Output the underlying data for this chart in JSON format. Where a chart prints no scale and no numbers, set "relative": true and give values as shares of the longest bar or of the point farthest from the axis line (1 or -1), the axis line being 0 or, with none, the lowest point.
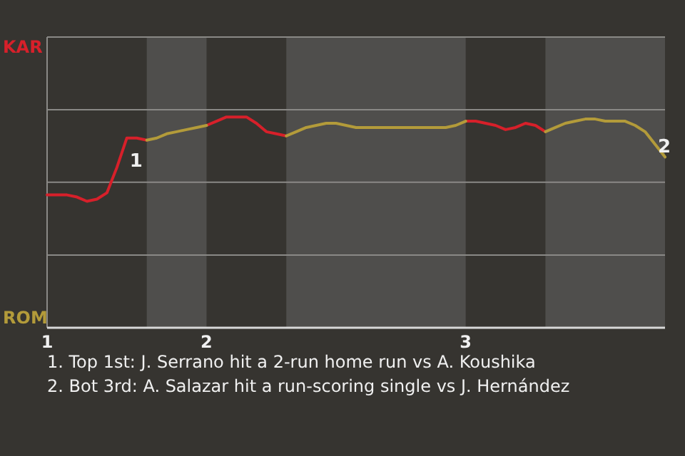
{
  "chart_data": {
    "type": "line",
    "relative": true,
    "categories": [
      "1",
      null,
      null,
      null,
      null,
      null,
      null,
      null,
      null,
      null,
      null,
      null,
      null,
      null,
      null,
      null,
      "2",
      null,
      null,
      null,
      null,
      null,
      null,
      null,
      null,
      null,
      null,
      null,
      null,
      null,
      null,
      null,
      null,
      null,
      null,
      null,
      null,
      null,
      null,
      null,
      null,
      null,
      "3",
      null,
      null,
      null,
      null,
      null,
      null,
      null,
      null,
      null,
      null,
      null,
      null,
      null,
      null,
      null,
      null,
      null,
      null,
      null,
      null
    ],
    "marker": "none",
    "line_style": "solid",
    "legend": "left",
    "ref_lines": [
      {
        "axis": "y",
        "value": 0.345,
        "color": "#8a8986"
      },
      {
        "axis": "y",
        "value": 0.69,
        "color": "#8a8986"
      },
      {
        "axis": "y",
        "value": 1.034,
        "color": "#8a8986"
      },
      {
        "axis": "y",
        "value": 1.379,
        "color": "#8a8986"
      }
    ],
    "series": [
      {
        "name": "KAR",
        "color": "#d7202a",
        "values": [
          0.63,
          0.63,
          0.63,
          0.62,
          0.6,
          0.61,
          0.64,
          0.76,
          0.9,
          0.9,
          0.89,
          null,
          null,
          null,
          null,
          null,
          0.96,
          0.98,
          1,
          1,
          1,
          0.97,
          0.93,
          0.92,
          0.91,
          null,
          null,
          null,
          null,
          null,
          null,
          null,
          null,
          null,
          null,
          null,
          null,
          null,
          null,
          null,
          null,
          null,
          0.98,
          0.98,
          0.97,
          0.96,
          0.94,
          0.95,
          0.97,
          0.96,
          0.93,
          null,
          null,
          null,
          null,
          null,
          null,
          null,
          null,
          null,
          null,
          null,
          null
        ]
      },
      {
        "name": "ROM",
        "color": "#b39b3a",
        "values": [
          null,
          null,
          null,
          null,
          null,
          null,
          null,
          null,
          null,
          null,
          0.89,
          0.9,
          0.92,
          0.93,
          0.94,
          0.95,
          0.96,
          null,
          null,
          null,
          null,
          null,
          null,
          null,
          0.91,
          0.93,
          0.95,
          0.96,
          0.97,
          0.97,
          0.96,
          0.95,
          0.95,
          0.95,
          0.95,
          0.95,
          0.95,
          0.95,
          0.95,
          0.95,
          0.95,
          0.96,
          0.98,
          null,
          null,
          null,
          null,
          null,
          null,
          null,
          0.93,
          0.95,
          0.97,
          0.98,
          0.99,
          0.99,
          0.98,
          0.98,
          0.98,
          0.96,
          0.93,
          0.87,
          0.81
        ]
      }
    ],
    "annotations": [
      "1",
      "2",
      "1. Top 1st: J. Serrano hit a 2-run home run vs A. Koushika",
      "2. Bot 3rd: A. Salazar hit a run-scoring single vs J. Hernández"
    ]
  }
}
